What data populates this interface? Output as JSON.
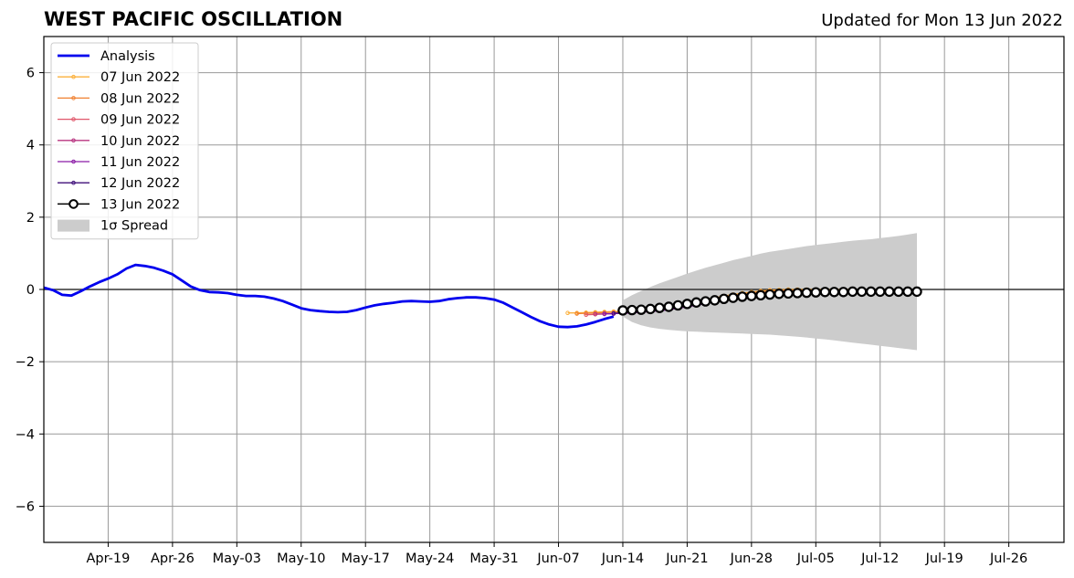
{
  "header": {
    "title": "WEST PACIFIC OSCILLATION",
    "updated": "Updated for Mon 13 Jun 2022"
  },
  "chart_data": {
    "type": "line",
    "title": "WEST PACIFIC OSCILLATION",
    "subtitle": "Updated for Mon 13 Jun 2022",
    "xlabel": "",
    "ylabel": "",
    "x_range": [
      "2022-04-12",
      "2022-08-01"
    ],
    "ylim": [
      -7,
      7
    ],
    "y_ticks": [
      -6,
      -4,
      -2,
      0,
      2,
      4,
      6
    ],
    "y_tick_labels": [
      "−6",
      "−4",
      "−2",
      "0",
      "2",
      "4",
      "6"
    ],
    "x_ticks": [
      "2022-04-19",
      "2022-04-26",
      "2022-05-03",
      "2022-05-10",
      "2022-05-17",
      "2022-05-24",
      "2022-05-31",
      "2022-06-07",
      "2022-06-14",
      "2022-06-21",
      "2022-06-28",
      "2022-07-05",
      "2022-07-12",
      "2022-07-19",
      "2022-07-26"
    ],
    "x_tick_labels": [
      "Apr-19",
      "Apr-26",
      "May-03",
      "May-10",
      "May-17",
      "May-24",
      "May-31",
      "Jun-07",
      "Jun-14",
      "Jun-21",
      "Jun-28",
      "Jul-05",
      "Jul-12",
      "Jul-19",
      "Jul-26"
    ],
    "grid": true,
    "zero_line": true,
    "legend_position": "top-left",
    "series": [
      {
        "name": "Analysis",
        "color": "#0000ee",
        "style": "thick-line",
        "points": [
          [
            "2022-04-12",
            0.05
          ],
          [
            "2022-04-13",
            -0.02
          ],
          [
            "2022-04-14",
            -0.15
          ],
          [
            "2022-04-15",
            -0.17
          ],
          [
            "2022-04-16",
            -0.05
          ],
          [
            "2022-04-17",
            0.08
          ],
          [
            "2022-04-18",
            0.2
          ],
          [
            "2022-04-19",
            0.3
          ],
          [
            "2022-04-20",
            0.42
          ],
          [
            "2022-04-21",
            0.58
          ],
          [
            "2022-04-22",
            0.68
          ],
          [
            "2022-04-23",
            0.65
          ],
          [
            "2022-04-24",
            0.6
          ],
          [
            "2022-04-25",
            0.52
          ],
          [
            "2022-04-26",
            0.42
          ],
          [
            "2022-04-27",
            0.25
          ],
          [
            "2022-04-28",
            0.08
          ],
          [
            "2022-04-29",
            -0.02
          ],
          [
            "2022-04-30",
            -0.07
          ],
          [
            "2022-05-01",
            -0.08
          ],
          [
            "2022-05-02",
            -0.1
          ],
          [
            "2022-05-03",
            -0.15
          ],
          [
            "2022-05-04",
            -0.18
          ],
          [
            "2022-05-05",
            -0.18
          ],
          [
            "2022-05-06",
            -0.2
          ],
          [
            "2022-05-07",
            -0.25
          ],
          [
            "2022-05-08",
            -0.32
          ],
          [
            "2022-05-09",
            -0.42
          ],
          [
            "2022-05-10",
            -0.52
          ],
          [
            "2022-05-11",
            -0.57
          ],
          [
            "2022-05-12",
            -0.6
          ],
          [
            "2022-05-13",
            -0.62
          ],
          [
            "2022-05-14",
            -0.63
          ],
          [
            "2022-05-15",
            -0.62
          ],
          [
            "2022-05-16",
            -0.57
          ],
          [
            "2022-05-17",
            -0.5
          ],
          [
            "2022-05-18",
            -0.44
          ],
          [
            "2022-05-19",
            -0.4
          ],
          [
            "2022-05-20",
            -0.37
          ],
          [
            "2022-05-21",
            -0.33
          ],
          [
            "2022-05-22",
            -0.32
          ],
          [
            "2022-05-23",
            -0.33
          ],
          [
            "2022-05-24",
            -0.34
          ],
          [
            "2022-05-25",
            -0.32
          ],
          [
            "2022-05-26",
            -0.27
          ],
          [
            "2022-05-27",
            -0.24
          ],
          [
            "2022-05-28",
            -0.22
          ],
          [
            "2022-05-29",
            -0.22
          ],
          [
            "2022-05-30",
            -0.24
          ],
          [
            "2022-05-31",
            -0.28
          ],
          [
            "2022-06-01",
            -0.37
          ],
          [
            "2022-06-02",
            -0.5
          ],
          [
            "2022-06-03",
            -0.63
          ],
          [
            "2022-06-04",
            -0.76
          ],
          [
            "2022-06-05",
            -0.88
          ],
          [
            "2022-06-06",
            -0.97
          ],
          [
            "2022-06-07",
            -1.03
          ],
          [
            "2022-06-08",
            -1.04
          ],
          [
            "2022-06-09",
            -1.02
          ],
          [
            "2022-06-10",
            -0.97
          ],
          [
            "2022-06-11",
            -0.9
          ],
          [
            "2022-06-12",
            -0.82
          ],
          [
            "2022-06-13",
            -0.75
          ]
        ]
      },
      {
        "name": "07 Jun 2022",
        "color": "#fbb03b",
        "start": "2022-06-08",
        "values": [
          -0.65,
          -0.65,
          -0.64,
          -0.63,
          -0.62,
          -0.61,
          -0.6,
          -0.58,
          -0.56,
          -0.53,
          -0.5,
          -0.46,
          -0.42,
          -0.38,
          -0.33,
          -0.28,
          -0.23,
          -0.18,
          -0.14,
          -0.1,
          -0.07,
          -0.04,
          -0.02,
          -0.01,
          0.0,
          0.0,
          0.0,
          0.0,
          0.0,
          0.0,
          0.0,
          0.0
        ]
      },
      {
        "name": "08 Jun 2022",
        "color": "#f08030",
        "start": "2022-06-09",
        "values": [
          -0.67,
          -0.66,
          -0.65,
          -0.64,
          -0.63,
          -0.62,
          -0.6,
          -0.58,
          -0.55,
          -0.52,
          -0.48,
          -0.44,
          -0.4,
          -0.35,
          -0.3,
          -0.25,
          -0.2,
          -0.16,
          -0.12,
          -0.09,
          -0.06,
          -0.04,
          -0.03,
          -0.02,
          -0.02,
          -0.02,
          -0.02,
          -0.02,
          -0.02,
          -0.02,
          -0.02
        ]
      },
      {
        "name": "09 Jun 2022",
        "color": "#e0566a",
        "start": "2022-06-10",
        "values": [
          -0.7,
          -0.69,
          -0.68,
          -0.67,
          -0.66,
          -0.64,
          -0.62,
          -0.6,
          -0.57,
          -0.54,
          -0.5,
          -0.46,
          -0.41,
          -0.36,
          -0.31,
          -0.26,
          -0.21,
          -0.17,
          -0.13,
          -0.1,
          -0.08,
          -0.06,
          -0.05,
          -0.05,
          -0.05,
          -0.05,
          -0.05,
          -0.05,
          -0.05,
          -0.05
        ]
      },
      {
        "name": "10 Jun 2022",
        "color": "#b83480",
        "start": "2022-06-11",
        "values": [
          -0.68,
          -0.68,
          -0.67,
          -0.66,
          -0.65,
          -0.63,
          -0.61,
          -0.58,
          -0.55,
          -0.51,
          -0.47,
          -0.42,
          -0.37,
          -0.32,
          -0.27,
          -0.22,
          -0.18,
          -0.14,
          -0.11,
          -0.09,
          -0.07,
          -0.06,
          -0.06,
          -0.06,
          -0.06,
          -0.06,
          -0.06,
          -0.06,
          -0.06
        ]
      },
      {
        "name": "11 Jun 2022",
        "color": "#8a1aa6",
        "start": "2022-06-12",
        "values": [
          -0.67,
          -0.67,
          -0.66,
          -0.65,
          -0.63,
          -0.61,
          -0.59,
          -0.56,
          -0.52,
          -0.48,
          -0.44,
          -0.39,
          -0.34,
          -0.29,
          -0.24,
          -0.2,
          -0.16,
          -0.13,
          -0.1,
          -0.08,
          -0.07,
          -0.07,
          -0.07,
          -0.07,
          -0.07,
          -0.07,
          -0.07,
          -0.07
        ]
      },
      {
        "name": "12 Jun 2022",
        "color": "#3f0f7a",
        "start": "2022-06-13",
        "values": [
          -0.66,
          -0.64,
          -0.62,
          -0.6,
          -0.58,
          -0.55,
          -0.52,
          -0.48,
          -0.44,
          -0.4,
          -0.36,
          -0.31,
          -0.27,
          -0.23,
          -0.19,
          -0.16,
          -0.13,
          -0.11,
          -0.09,
          -0.08,
          -0.08,
          -0.08,
          -0.08,
          -0.08,
          -0.08,
          -0.08,
          -0.08
        ]
      },
      {
        "name": "13 Jun 2022",
        "color": "#000000",
        "start": "2022-06-14",
        "style": "open-circles",
        "values": [
          -0.58,
          -0.57,
          -0.56,
          -0.54,
          -0.51,
          -0.48,
          -0.44,
          -0.4,
          -0.36,
          -0.33,
          -0.3,
          -0.26,
          -0.23,
          -0.2,
          -0.18,
          -0.16,
          -0.14,
          -0.12,
          -0.11,
          -0.1,
          -0.09,
          -0.08,
          -0.07,
          -0.07,
          -0.07,
          -0.06,
          -0.06,
          -0.06,
          -0.06,
          -0.06,
          -0.06,
          -0.06,
          -0.06
        ]
      }
    ],
    "spread": {
      "name": "1σ Spread",
      "color": "#cccccc",
      "start": "2022-06-14",
      "upper": [
        -0.3,
        -0.16,
        -0.04,
        0.07,
        0.17,
        0.26,
        0.35,
        0.44,
        0.52,
        0.6,
        0.67,
        0.74,
        0.81,
        0.87,
        0.93,
        0.99,
        1.04,
        1.08,
        1.12,
        1.16,
        1.2,
        1.23,
        1.26,
        1.29,
        1.32,
        1.35,
        1.37,
        1.39,
        1.42,
        1.45,
        1.48,
        1.52,
        1.56
      ],
      "lower": [
        -0.75,
        -0.9,
        -0.99,
        -1.05,
        -1.09,
        -1.12,
        -1.14,
        -1.16,
        -1.17,
        -1.18,
        -1.19,
        -1.2,
        -1.21,
        -1.22,
        -1.23,
        -1.24,
        -1.25,
        -1.27,
        -1.29,
        -1.31,
        -1.33,
        -1.36,
        -1.38,
        -1.41,
        -1.44,
        -1.47,
        -1.5,
        -1.53,
        -1.56,
        -1.59,
        -1.62,
        -1.65,
        -1.68
      ]
    }
  }
}
